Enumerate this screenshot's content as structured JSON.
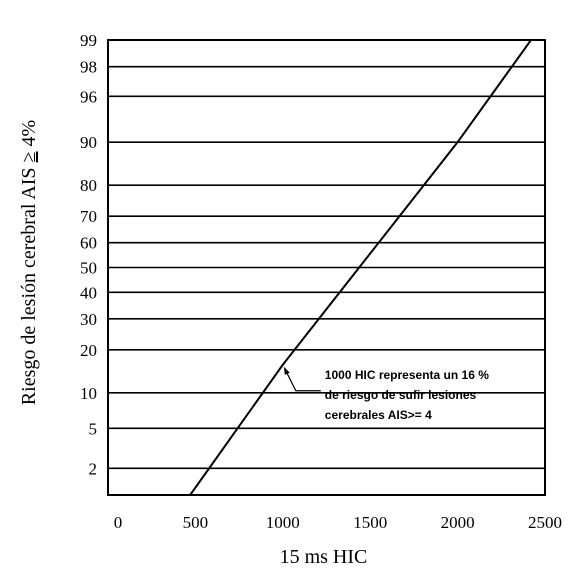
{
  "chart_data": {
    "type": "line",
    "title": "",
    "xlabel": "15 ms HIC",
    "ylabel_main": "Riesgo de lesión cerebral AIS ",
    "ylabel_geq": "≥",
    "ylabel_end": " 4%",
    "x_ticks": [
      "0",
      "500",
      "1000",
      "1500",
      "2000",
      "2500"
    ],
    "y_ticks": [
      "2",
      "5",
      "10",
      "20",
      "30",
      "40",
      "50",
      "60",
      "70",
      "80",
      "90",
      "96",
      "98",
      "99"
    ],
    "xlim": [
      0,
      2500
    ],
    "ylim": [
      1,
      99
    ],
    "y_scale": "probability",
    "grid": true,
    "series": [
      {
        "x": [
          470,
          1000,
          2000,
          2420
        ],
        "y": [
          1,
          16,
          90,
          99
        ]
      }
    ],
    "annotation": {
      "lines": [
        "1000 HIC representa un 16 %",
        "de riesgo de sufir lesiones",
        "cerebrales  AIS>= 4"
      ],
      "x": 1000,
      "y": 16
    }
  }
}
